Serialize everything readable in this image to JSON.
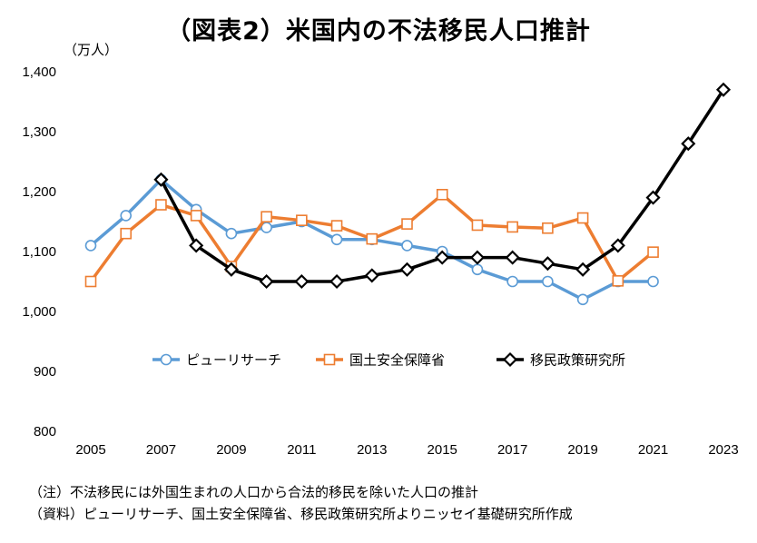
{
  "title": "（図表2）米国内の不法移民人口推計",
  "unit": "（万人）",
  "notes": {
    "note": "（注）不法移民には外国生まれの人口から合法的移民を除いた人口の推計",
    "source": "（資料）ピューリサーチ、国土安全保障省、移民政策研究所よりニッセイ基礎研究所作成"
  },
  "chart_data": {
    "type": "line",
    "title": "（図表2）米国内の不法移民人口推計",
    "ylabel": "（万人）",
    "xlabel": "",
    "ylim": [
      800,
      1400
    ],
    "yticks": [
      800,
      900,
      1000,
      1100,
      1200,
      1300,
      1400
    ],
    "ytick_labels": [
      "800",
      "900",
      "1,000",
      "1,100",
      "1,200",
      "1,300",
      "1,400"
    ],
    "xticks": [
      2005,
      2007,
      2009,
      2011,
      2013,
      2015,
      2017,
      2019,
      2021,
      2023
    ],
    "grid": false,
    "legend": "bottom-center",
    "series": [
      {
        "name": "ピューリサーチ",
        "color": "#5b9bd5",
        "marker": "circle",
        "x": [
          2005,
          2006,
          2007,
          2008,
          2009,
          2010,
          2011,
          2012,
          2013,
          2014,
          2015,
          2016,
          2017,
          2018,
          2019,
          2020,
          2021
        ],
        "y": [
          1110,
          1160,
          1220,
          1170,
          1130,
          1140,
          1150,
          1120,
          1120,
          1110,
          1100,
          1070,
          1050,
          1050,
          1020,
          1050,
          1050
        ]
      },
      {
        "name": "国土安全保障省",
        "color": "#ed7d31",
        "marker": "square",
        "x": [
          2005,
          2006,
          2007,
          2008,
          2009,
          2010,
          2011,
          2012,
          2013,
          2014,
          2015,
          2016,
          2017,
          2018,
          2019,
          2020,
          2021
        ],
        "y": [
          1050,
          1130,
          1178,
          1160,
          1075,
          1158,
          1152,
          1143,
          1121,
          1146,
          1195,
          1144,
          1141,
          1139,
          1156,
          1051,
          1099
        ]
      },
      {
        "name": "移民政策研究所",
        "color": "#000000",
        "marker": "diamond",
        "x": [
          2007,
          2008,
          2009,
          2010,
          2011,
          2012,
          2013,
          2014,
          2015,
          2016,
          2017,
          2018,
          2019,
          2020,
          2021,
          2022,
          2023
        ],
        "y": [
          1220,
          1110,
          1070,
          1050,
          1050,
          1050,
          1060,
          1070,
          1090,
          1090,
          1090,
          1080,
          1070,
          1110,
          1190,
          1280,
          1370
        ]
      }
    ]
  }
}
